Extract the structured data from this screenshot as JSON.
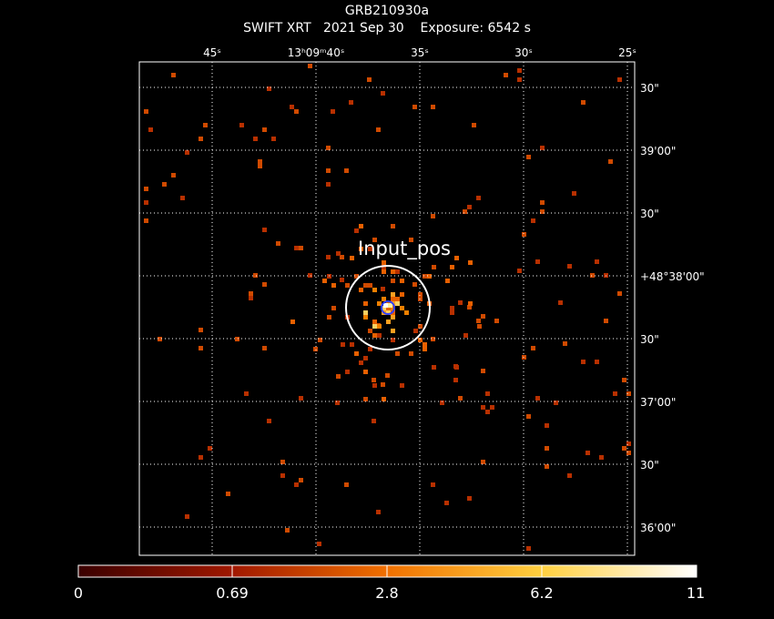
{
  "header": {
    "title": "GRB210930a",
    "subtitle": "SWIFT XRT   2021 Sep 30    Exposure: 6542 s"
  },
  "ra_ticks": [
    "45ˢ",
    "13ʰ09ᵐ40ˢ",
    "35ˢ",
    "30ˢ",
    "25ˢ"
  ],
  "dec_ticks": [
    "30\"",
    "39'00\"",
    "30\"",
    "+48°38'00\"",
    "30\"",
    "37'00\"",
    "30\"",
    "36'00\""
  ],
  "annotation": "Input_pos",
  "colorbar": {
    "labels": [
      "0",
      "0.69",
      "2.8",
      "6.2",
      "11"
    ]
  }
}
